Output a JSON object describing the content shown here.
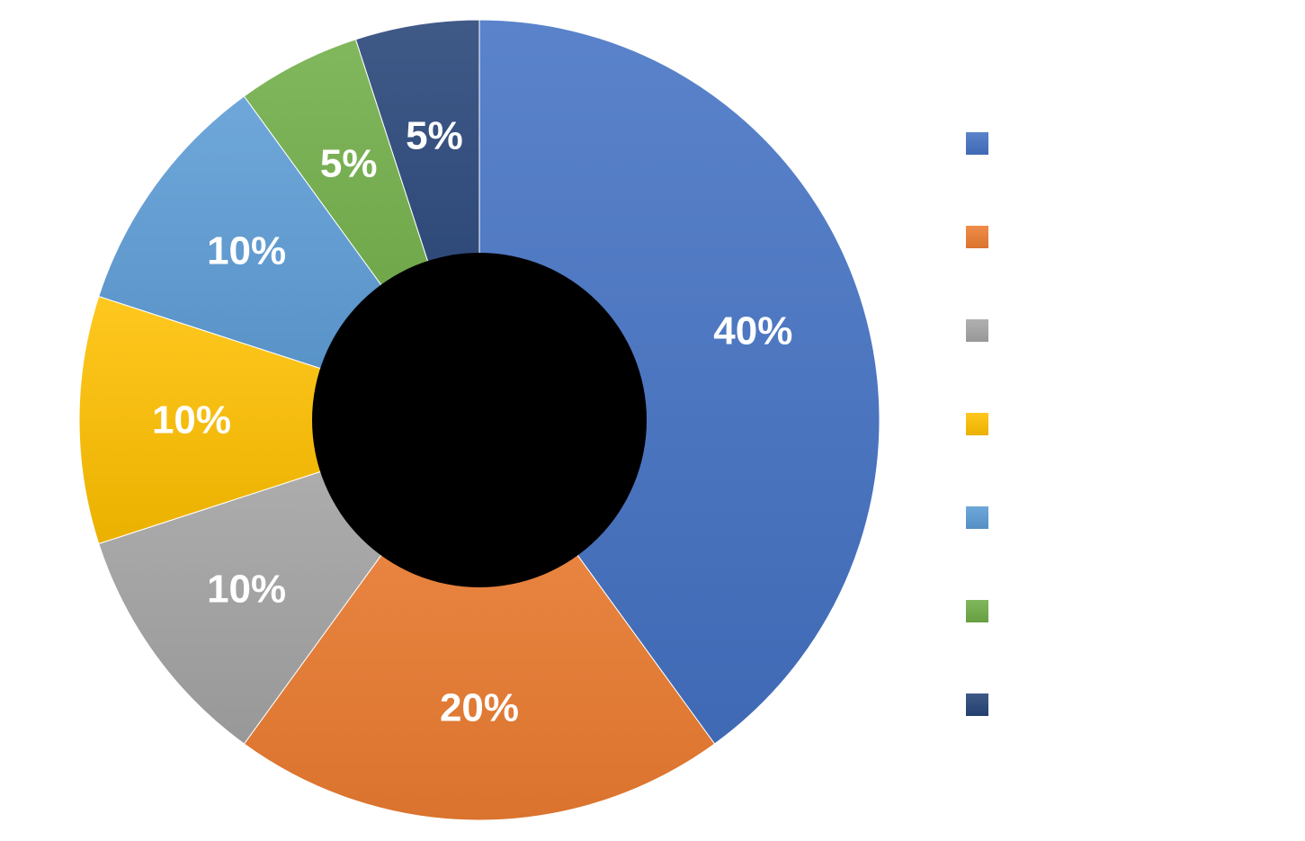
{
  "chart_data": {
    "type": "pie",
    "variant": "donut",
    "title": "",
    "legend_position": "right",
    "center_hole_color": "#000000",
    "slices": [
      {
        "label": "",
        "value": 40,
        "display": "40%",
        "color": "#4472C4"
      },
      {
        "label": "",
        "value": 20,
        "display": "20%",
        "color": "#ED7D31"
      },
      {
        "label": "",
        "value": 10,
        "display": "10%",
        "color": "#A5A5A5"
      },
      {
        "label": "",
        "value": 10,
        "display": "10%",
        "color": "#FFC000"
      },
      {
        "label": "",
        "value": 10,
        "display": "10%",
        "color": "#5B9BD5"
      },
      {
        "label": "",
        "value": 5,
        "display": "5%",
        "color": "#70AD47"
      },
      {
        "label": "",
        "value": 5,
        "display": "5%",
        "color": "#264478"
      }
    ]
  }
}
